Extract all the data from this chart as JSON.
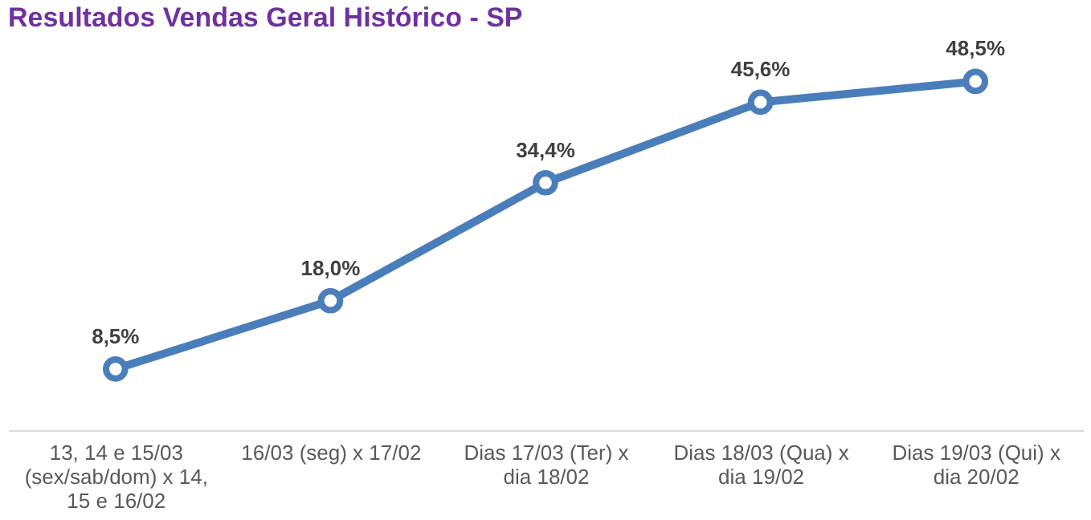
{
  "chart_data": {
    "type": "line",
    "title": "Resultados Vendas Geral Histórico - SP",
    "categories": [
      "13, 14 e 15/03 (sex/sab/dom) x 14, 15 e 16/02",
      "16/03 (seg) x 17/02",
      "Dias 17/03 (Ter) x dia 18/02",
      "Dias 18/03 (Qua) x dia 19/02",
      "Dias 19/03 (Qui) x dia 20/02"
    ],
    "series": [
      {
        "color": "#4a7ebb",
        "values": [
          8.5,
          18.0,
          34.4,
          45.6,
          48.5
        ],
        "value_labels": [
          "8,5%",
          "18,0%",
          "34,4%",
          "45,6%",
          "48,5%"
        ]
      }
    ],
    "grid": false,
    "marker": "circle",
    "line_style": "solid"
  }
}
